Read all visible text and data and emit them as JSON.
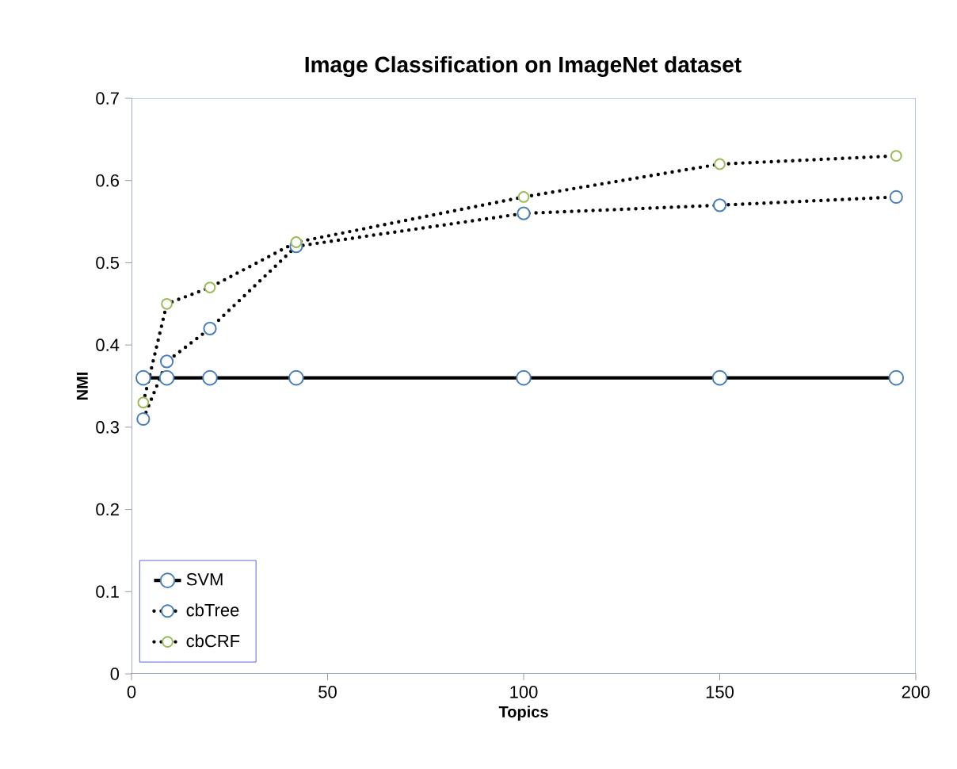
{
  "chart_data": {
    "type": "line",
    "title": "Image Classification on ImageNet dataset",
    "xlabel": "Topics",
    "ylabel": "NMI",
    "x": [
      3,
      9,
      20,
      42,
      100,
      150,
      195
    ],
    "series": [
      {
        "name": "SVM",
        "color": "#4a7ebb",
        "line_style": "solid",
        "values": [
          0.36,
          0.36,
          0.36,
          0.36,
          0.36,
          0.36,
          0.36
        ]
      },
      {
        "name": "cbTree",
        "color": "#4a7ebb",
        "line_style": "dotted",
        "values": [
          0.31,
          0.38,
          0.42,
          0.52,
          0.56,
          0.57,
          0.58
        ]
      },
      {
        "name": "cbCRF",
        "color": "#9bbb59",
        "line_style": "dotted",
        "values": [
          0.33,
          0.45,
          0.47,
          0.525,
          0.58,
          0.62,
          0.63
        ]
      }
    ],
    "xlim": [
      0,
      200
    ],
    "xticks": [
      0,
      50,
      100,
      150,
      200
    ],
    "ylim": [
      0,
      0.7
    ],
    "yticks": [
      0,
      0.1,
      0.2,
      0.3,
      0.4,
      0.5,
      0.6,
      0.7
    ],
    "marker": "circle",
    "grid": false,
    "legend": "bottom left"
  }
}
